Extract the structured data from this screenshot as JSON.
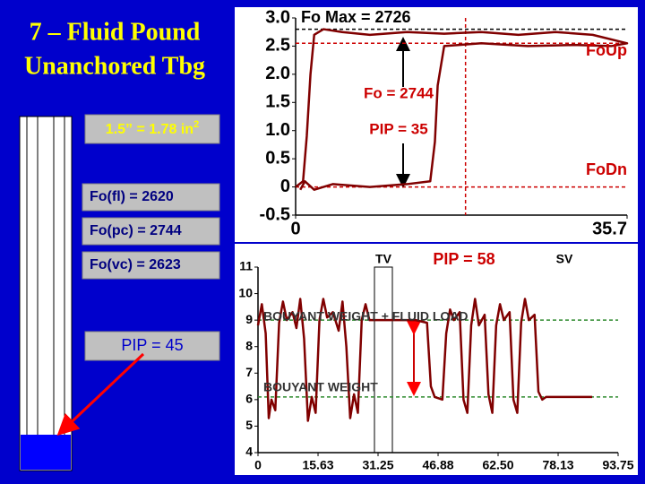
{
  "slide": {
    "title": [
      "7 – Fluid Pound",
      "Unanchored Tbg"
    ],
    "area_label": "1.5” = 1.78 in",
    "area_label_sup": "2",
    "forces": [
      "Fo(fl) = 2620",
      "Fo(pc) = 2744",
      "Fo(vc) = 2623"
    ],
    "pip_label": "PIP = 45"
  },
  "chart_data": [
    {
      "type": "line",
      "annotations": [
        "Fo Max = 2726",
        "Fo = 2744",
        "PIP = 35",
        "FoUp",
        "FoDn"
      ],
      "series": [
        {
          "color": "#800000",
          "x": [
            0,
            0.8,
            1.2,
            1.6,
            2,
            3,
            5,
            8,
            12,
            16,
            20,
            24,
            28,
            32,
            35.7,
            34,
            30,
            25,
            20,
            16,
            15.3,
            15,
            14.5,
            12,
            8,
            4,
            2,
            1,
            0.5
          ],
          "values": [
            0,
            0.1,
            0.9,
            2.0,
            2.7,
            2.8,
            2.75,
            2.7,
            2.75,
            2.72,
            2.75,
            2.7,
            2.75,
            2.7,
            2.55,
            2.5,
            2.52,
            2.5,
            2.55,
            2.5,
            1.8,
            0.8,
            0.1,
            0.05,
            0,
            0.05,
            -0.05,
            0.1,
            -0.05
          ]
        }
      ],
      "ref_lines": [
        {
          "value": 2.8,
          "color": "#000000"
        },
        {
          "value": 2.55,
          "color": "#cc0000"
        },
        {
          "value": 0,
          "color": "#cc0000"
        }
      ],
      "ref_vlines": [
        {
          "value": 18.3,
          "color": "#cc0000"
        }
      ],
      "xlim": [
        0,
        35.7
      ],
      "xticks": [
        0,
        35.7
      ],
      "ylim": [
        -0.5,
        3.0
      ],
      "yticks": [
        {
          "value": 3,
          "label": "3.0"
        },
        2.5,
        {
          "value": 2,
          "label": "2.0"
        },
        1.5,
        {
          "value": 1,
          "label": "1.0"
        },
        0.5,
        0,
        -0.5
      ]
    },
    {
      "type": "line",
      "annotations": [
        "TV",
        "PIP = 58",
        "SV",
        "BOUYANT WEIGHT + FLUID LOAD",
        "BOUYANT WEIGHT"
      ],
      "series": [
        {
          "color": "#800000",
          "x": [
            0,
            1,
            2,
            2.8,
            3.5,
            4.5,
            5.5,
            6.5,
            7.5,
            9,
            10,
            11,
            12,
            13,
            14,
            15,
            16,
            17,
            18,
            19.5,
            21,
            22,
            23,
            24,
            25,
            26,
            27,
            28,
            29,
            31,
            36,
            41,
            44,
            45,
            46,
            48,
            49,
            50,
            51,
            52.5,
            53.5,
            54.5,
            55.5,
            56.5,
            57.5,
            59,
            60,
            61,
            62,
            63,
            64,
            65.5,
            66.5,
            67.5,
            68.5,
            69.5,
            70.5,
            72,
            73,
            74,
            75,
            80,
            87
          ],
          "values": [
            8.8,
            9.6,
            8.5,
            5.3,
            6.0,
            5.6,
            8.9,
            9.7,
            9.0,
            9.3,
            8.7,
            9.8,
            8.3,
            5.2,
            6.1,
            5.5,
            9.0,
            9.8,
            9.1,
            9.3,
            8.6,
            9.7,
            8.0,
            5.3,
            6.2,
            5.5,
            9.0,
            9.6,
            9.0,
            9.0,
            9.0,
            9.0,
            8.9,
            6.5,
            6.1,
            6.0,
            8.5,
            9.4,
            9.0,
            9.3,
            6.0,
            5.5,
            8.8,
            9.8,
            8.8,
            9.2,
            6.2,
            5.5,
            8.8,
            9.6,
            9.0,
            9.3,
            6.0,
            5.5,
            8.9,
            9.8,
            9.0,
            9.2,
            6.3,
            6.0,
            6.1,
            6.1,
            6.1
          ]
        }
      ],
      "ref_lines": [
        {
          "value": 9,
          "color": "#2e8b2e"
        },
        {
          "value": 6.1,
          "color": "#2e8b2e"
        }
      ],
      "xlim": [
        0,
        93.75
      ],
      "xticks": [
        0,
        15.63,
        31.25,
        46.88,
        {
          "value": 62.5,
          "label": "62.50"
        },
        78.13,
        93.75
      ],
      "ylim": [
        4,
        11
      ],
      "yticks": [
        4,
        5,
        6,
        7,
        8,
        9,
        10,
        11
      ]
    }
  ]
}
